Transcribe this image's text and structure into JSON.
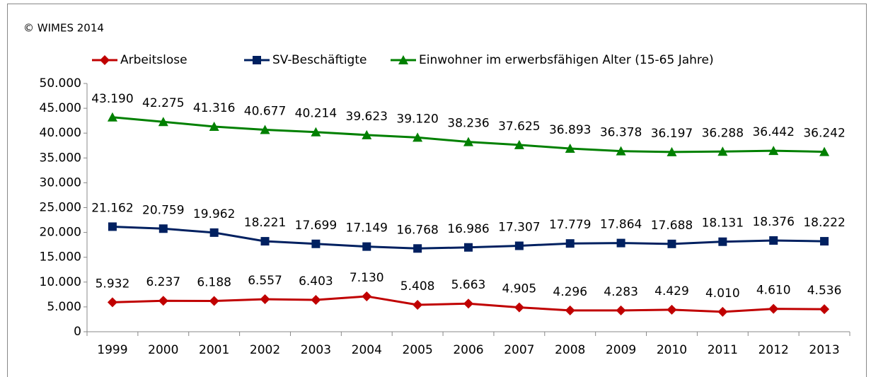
{
  "chart_data": {
    "type": "line",
    "annotation": "© WIMES 2014",
    "categories": [
      "1999",
      "2000",
      "2001",
      "2002",
      "2003",
      "2004",
      "2005",
      "2006",
      "2007",
      "2008",
      "2009",
      "2010",
      "2011",
      "2012",
      "2013"
    ],
    "series": [
      {
        "name": "Arbeitslose",
        "color": "#c00000",
        "marker": "diamond",
        "values": [
          5932,
          6237,
          6188,
          6557,
          6403,
          7130,
          5408,
          5663,
          4905,
          4296,
          4283,
          4429,
          4010,
          4610,
          4536
        ],
        "value_labels": [
          "5.932",
          "6.237",
          "6.188",
          "6.557",
          "6.403",
          "7.130",
          "5.408",
          "5.663",
          "4.905",
          "4.296",
          "4.283",
          "4.429",
          "4.010",
          "4.610",
          "4.536"
        ]
      },
      {
        "name": "SV-Beschäftigte",
        "color": "#002060",
        "marker": "square",
        "values": [
          21162,
          20759,
          19962,
          18221,
          17699,
          17149,
          16768,
          16986,
          17307,
          17779,
          17864,
          17688,
          18131,
          18376,
          18222
        ],
        "value_labels": [
          "21.162",
          "20.759",
          "19.962",
          "18.221",
          "17.699",
          "17.149",
          "16.768",
          "16.986",
          "17.307",
          "17.779",
          "17.864",
          "17.688",
          "18.131",
          "18.376",
          "18.222"
        ]
      },
      {
        "name": "Einwohner im erwerbsfähigen Alter (15-65 Jahre)",
        "color": "#008000",
        "marker": "triangle",
        "values": [
          43190,
          42275,
          41316,
          40677,
          40214,
          39623,
          39120,
          38236,
          37625,
          36893,
          36378,
          36197,
          36288,
          36442,
          36242
        ],
        "value_labels": [
          "43.190",
          "42.275",
          "41.316",
          "40.677",
          "40.214",
          "39.623",
          "39.120",
          "38.236",
          "37.625",
          "36.893",
          "36.378",
          "36.197",
          "36.288",
          "36.442",
          "36.242"
        ]
      }
    ],
    "ylim": [
      0,
      50000
    ],
    "yticks": [
      0,
      {
        "value": 5000,
        "label": "5.000"
      },
      {
        "value": 10000,
        "label": "10.000"
      },
      {
        "value": 15000,
        "label": "15.000"
      },
      {
        "value": 20000,
        "label": "20.000"
      },
      {
        "value": 25000,
        "label": "25.000"
      },
      {
        "value": 30000,
        "label": "30.000"
      },
      {
        "value": 35000,
        "label": "35.000"
      },
      {
        "value": 40000,
        "label": "40.000"
      },
      {
        "value": 45000,
        "label": "45.000"
      },
      {
        "value": 50000,
        "label": "50.000"
      }
    ],
    "grid": false,
    "legend": "top"
  }
}
